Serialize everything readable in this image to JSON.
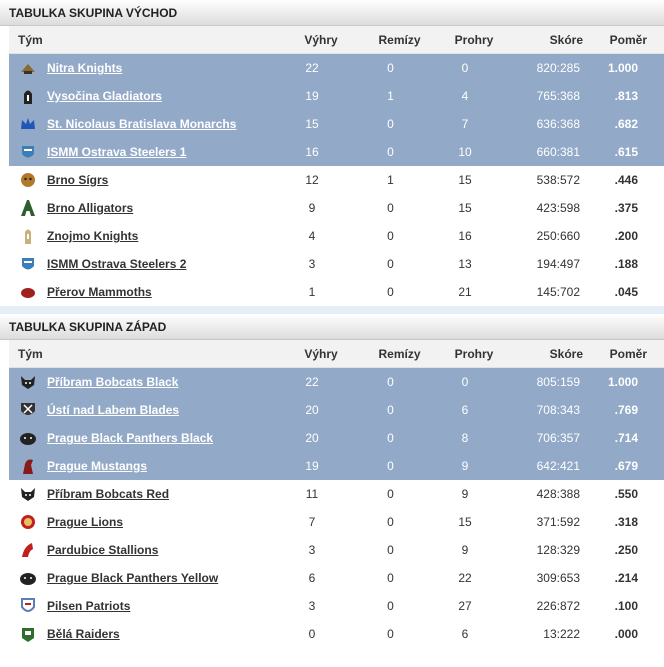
{
  "columns": {
    "team": "Tým",
    "wins": "Výhry",
    "draws": "Remízy",
    "losses": "Prohry",
    "score": "Skóre",
    "pct": "Poměr"
  },
  "groups": [
    {
      "title": "TABULKA SKUPINA VÝCHOD",
      "rows": [
        {
          "team": "Nitra Knights",
          "wins": "22",
          "draws": "0",
          "losses": "0",
          "score": "820:285",
          "pct": "1.000",
          "highlight": true,
          "icon": "knight-helmet-icon",
          "color": "#8b6a2a"
        },
        {
          "team": "Vysočina Gladiators",
          "wins": "19",
          "draws": "1",
          "losses": "4",
          "score": "765:368",
          "pct": ".813",
          "highlight": true,
          "icon": "gladiator-helmet-icon",
          "color": "#222222"
        },
        {
          "team": "St. Nicolaus Bratislava Monarchs",
          "wins": "15",
          "draws": "0",
          "losses": "7",
          "score": "636:368",
          "pct": ".682",
          "highlight": true,
          "icon": "crown-icon",
          "color": "#1f56b8"
        },
        {
          "team": "ISMM Ostrava Steelers 1",
          "wins": "16",
          "draws": "0",
          "losses": "10",
          "score": "660:381",
          "pct": ".615",
          "highlight": true,
          "icon": "steelers-shield-icon",
          "color": "#3b7fb8"
        },
        {
          "team": "Brno Sígrs",
          "wins": "12",
          "draws": "1",
          "losses": "15",
          "score": "538:572",
          "pct": ".446",
          "highlight": false,
          "icon": "tiger-icon",
          "color": "#b07a2a"
        },
        {
          "team": "Brno Alligators",
          "wins": "9",
          "draws": "0",
          "losses": "15",
          "score": "423:598",
          "pct": ".375",
          "highlight": false,
          "icon": "letter-a-icon",
          "color": "#2e5e2e"
        },
        {
          "team": "Znojmo Knights",
          "wins": "4",
          "draws": "0",
          "losses": "16",
          "score": "250:660",
          "pct": ".200",
          "highlight": false,
          "icon": "knight-visor-icon",
          "color": "#c8b27a"
        },
        {
          "team": "ISMM Ostrava Steelers 2",
          "wins": "3",
          "draws": "0",
          "losses": "13",
          "score": "194:497",
          "pct": ".188",
          "highlight": false,
          "icon": "steelers-shield-icon",
          "color": "#3b7fb8"
        },
        {
          "team": "Přerov Mammoths",
          "wins": "1",
          "draws": "0",
          "losses": "21",
          "score": "145:702",
          "pct": ".045",
          "highlight": false,
          "icon": "mammoth-icon",
          "color": "#a02020"
        }
      ]
    },
    {
      "title": "TABULKA SKUPINA ZÁPAD",
      "rows": [
        {
          "team": "Příbram Bobcats Black",
          "wins": "22",
          "draws": "0",
          "losses": "0",
          "score": "805:159",
          "pct": "1.000",
          "highlight": true,
          "icon": "bobcat-icon",
          "color": "#222222"
        },
        {
          "team": "Ústí nad Labem Blades",
          "wins": "20",
          "draws": "0",
          "losses": "6",
          "score": "708:343",
          "pct": ".769",
          "highlight": true,
          "icon": "blades-shield-icon",
          "color": "#333333"
        },
        {
          "team": "Prague Black Panthers Black",
          "wins": "20",
          "draws": "0",
          "losses": "8",
          "score": "706:357",
          "pct": ".714",
          "highlight": true,
          "icon": "panther-icon",
          "color": "#222222"
        },
        {
          "team": "Prague Mustangs",
          "wins": "19",
          "draws": "0",
          "losses": "9",
          "score": "642:421",
          "pct": ".679",
          "highlight": true,
          "icon": "mustang-icon",
          "color": "#8a1a1a"
        },
        {
          "team": "Příbram Bobcats Red",
          "wins": "11",
          "draws": "0",
          "losses": "9",
          "score": "428:388",
          "pct": ".550",
          "highlight": false,
          "icon": "bobcat-icon",
          "color": "#222222"
        },
        {
          "team": "Prague Lions",
          "wins": "7",
          "draws": "0",
          "losses": "15",
          "score": "371:592",
          "pct": ".318",
          "highlight": false,
          "icon": "lion-icon",
          "color": "#c02020"
        },
        {
          "team": "Pardubice Stallions",
          "wins": "3",
          "draws": "0",
          "losses": "9",
          "score": "128:329",
          "pct": ".250",
          "highlight": false,
          "icon": "stallion-icon",
          "color": "#c02020"
        },
        {
          "team": "Prague Black Panthers Yellow",
          "wins": "6",
          "draws": "0",
          "losses": "22",
          "score": "309:653",
          "pct": ".214",
          "highlight": false,
          "icon": "panther-icon",
          "color": "#222222"
        },
        {
          "team": "Pilsen Patriots",
          "wins": "3",
          "draws": "0",
          "losses": "27",
          "score": "226:872",
          "pct": ".100",
          "highlight": false,
          "icon": "patriots-shield-icon",
          "color": "#5a7fb8"
        },
        {
          "team": "Bělá Raiders",
          "wins": "0",
          "draws": "0",
          "losses": "6",
          "score": "13:222",
          "pct": ".000",
          "highlight": false,
          "icon": "raiders-icon",
          "color": "#2e6e2e"
        }
      ]
    }
  ]
}
